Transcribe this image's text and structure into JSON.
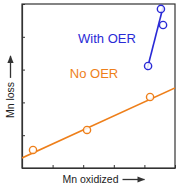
{
  "chart_data": {
    "type": "scatter",
    "x_label": "Mn oxidized",
    "y_label": "Mn loss",
    "xlim": [
      0,
      10
    ],
    "ylim": [
      0,
      10
    ],
    "xticks": [
      0,
      2,
      4,
      6,
      8,
      10
    ],
    "yticks": [
      0,
      2,
      4,
      6,
      8,
      10
    ],
    "tick_labels": false,
    "grid": false,
    "series": [
      {
        "name": "No OER",
        "color": "#ee7f1a",
        "marker": "open",
        "x": [
          0.72,
          4.25,
          8.37
        ],
        "values": [
          1.1,
          2.32,
          4.33
        ],
        "fit": {
          "x": [
            0,
            10
          ],
          "values": [
            0.61,
            4.88
          ]
        }
      },
      {
        "name": "With OER",
        "color": "#2a2ad6",
        "marker": "open",
        "x": [
          8.24,
          9.22,
          9.08
        ],
        "values": [
          6.22,
          8.72,
          9.7
        ],
        "fit": {
          "x": [
            8.17,
            9.22
          ],
          "values": [
            5.98,
            9.82
          ]
        }
      }
    ]
  }
}
